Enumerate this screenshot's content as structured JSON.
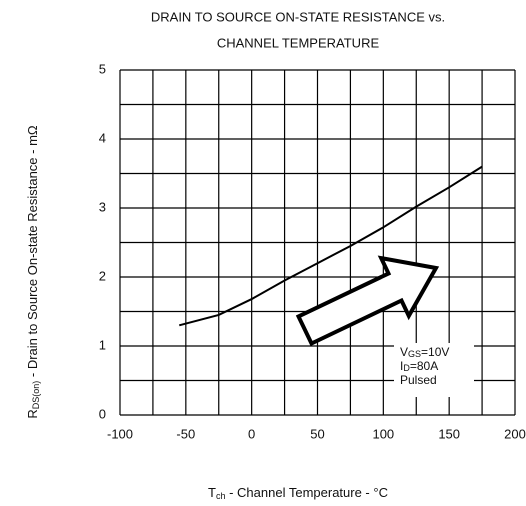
{
  "chart_data": {
    "type": "line",
    "title": [
      "DRAIN TO SOURCE ON-STATE RESISTANCE vs.",
      "CHANNEL TEMPERATURE"
    ],
    "x_label": {
      "main": "T",
      "sub": "ch",
      "rest": " - Channel Temperature - °C"
    },
    "y_label": {
      "main": "R",
      "sub": "DS(on)",
      "rest": " - Drain to Source On-state Resistance - mΩ"
    },
    "x": [
      -55,
      -25,
      0,
      25,
      50,
      75,
      100,
      125,
      150,
      175
    ],
    "series": [
      {
        "color": "#000000",
        "values": [
          1.3,
          1.45,
          1.68,
          1.95,
          2.2,
          2.45,
          2.72,
          3.02,
          3.3,
          3.6
        ]
      }
    ],
    "xlim": [
      -100,
      200
    ],
    "xticks": [
      -100,
      -50,
      0,
      50,
      100,
      150,
      200
    ],
    "ylim": [
      0,
      5
    ],
    "yticks": [
      0,
      1,
      2,
      3,
      4,
      5
    ],
    "xgrid": [
      -100,
      -75,
      -50,
      -25,
      0,
      25,
      50,
      75,
      100,
      125,
      150,
      175,
      200
    ],
    "ygrid": [
      0,
      0.5,
      1,
      1.5,
      2,
      2.5,
      3,
      3.5,
      4,
      4.5,
      5
    ],
    "grid": true,
    "annotations": [
      {
        "main": "V",
        "sub": "GS",
        "rest": "=10V"
      },
      {
        "main": "I",
        "sub": "D",
        "rest": "=80A"
      },
      {
        "main": "Pulsed",
        "sub": "",
        "rest": ""
      }
    ]
  }
}
